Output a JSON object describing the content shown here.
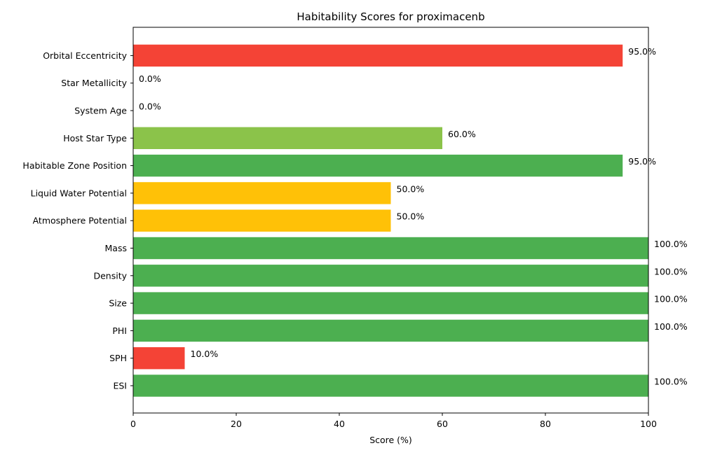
{
  "chart_data": {
    "type": "bar",
    "orientation": "horizontal",
    "title": "Habitability Scores for proximacenb",
    "xlabel": "Score (%)",
    "ylabel": "",
    "xlim": [
      0,
      100
    ],
    "xticks": [
      0,
      20,
      40,
      60,
      80,
      100
    ],
    "grid": false,
    "legend": "none",
    "categories": [
      "ESI",
      "SPH",
      "PHI",
      "Size",
      "Density",
      "Mass",
      "Atmosphere Potential",
      "Liquid Water Potential",
      "Habitable Zone Position",
      "Host Star Type",
      "System Age",
      "Star Metallicity",
      "Orbital Eccentricity"
    ],
    "values": [
      100,
      10,
      100,
      100,
      100,
      100,
      50,
      50,
      95,
      60,
      0,
      0,
      95
    ],
    "value_labels": [
      "100.0%",
      "10.0%",
      "100.0%",
      "100.0%",
      "100.0%",
      "100.0%",
      "50.0%",
      "50.0%",
      "95.0%",
      "60.0%",
      "0.0%",
      "0.0%",
      "95.0%"
    ],
    "colors": [
      "#4caf50",
      "#f44336",
      "#4caf50",
      "#4caf50",
      "#4caf50",
      "#4caf50",
      "#ffc107",
      "#ffc107",
      "#4caf50",
      "#8bc34a",
      "#4caf50",
      "#4caf50",
      "#f44336"
    ]
  }
}
